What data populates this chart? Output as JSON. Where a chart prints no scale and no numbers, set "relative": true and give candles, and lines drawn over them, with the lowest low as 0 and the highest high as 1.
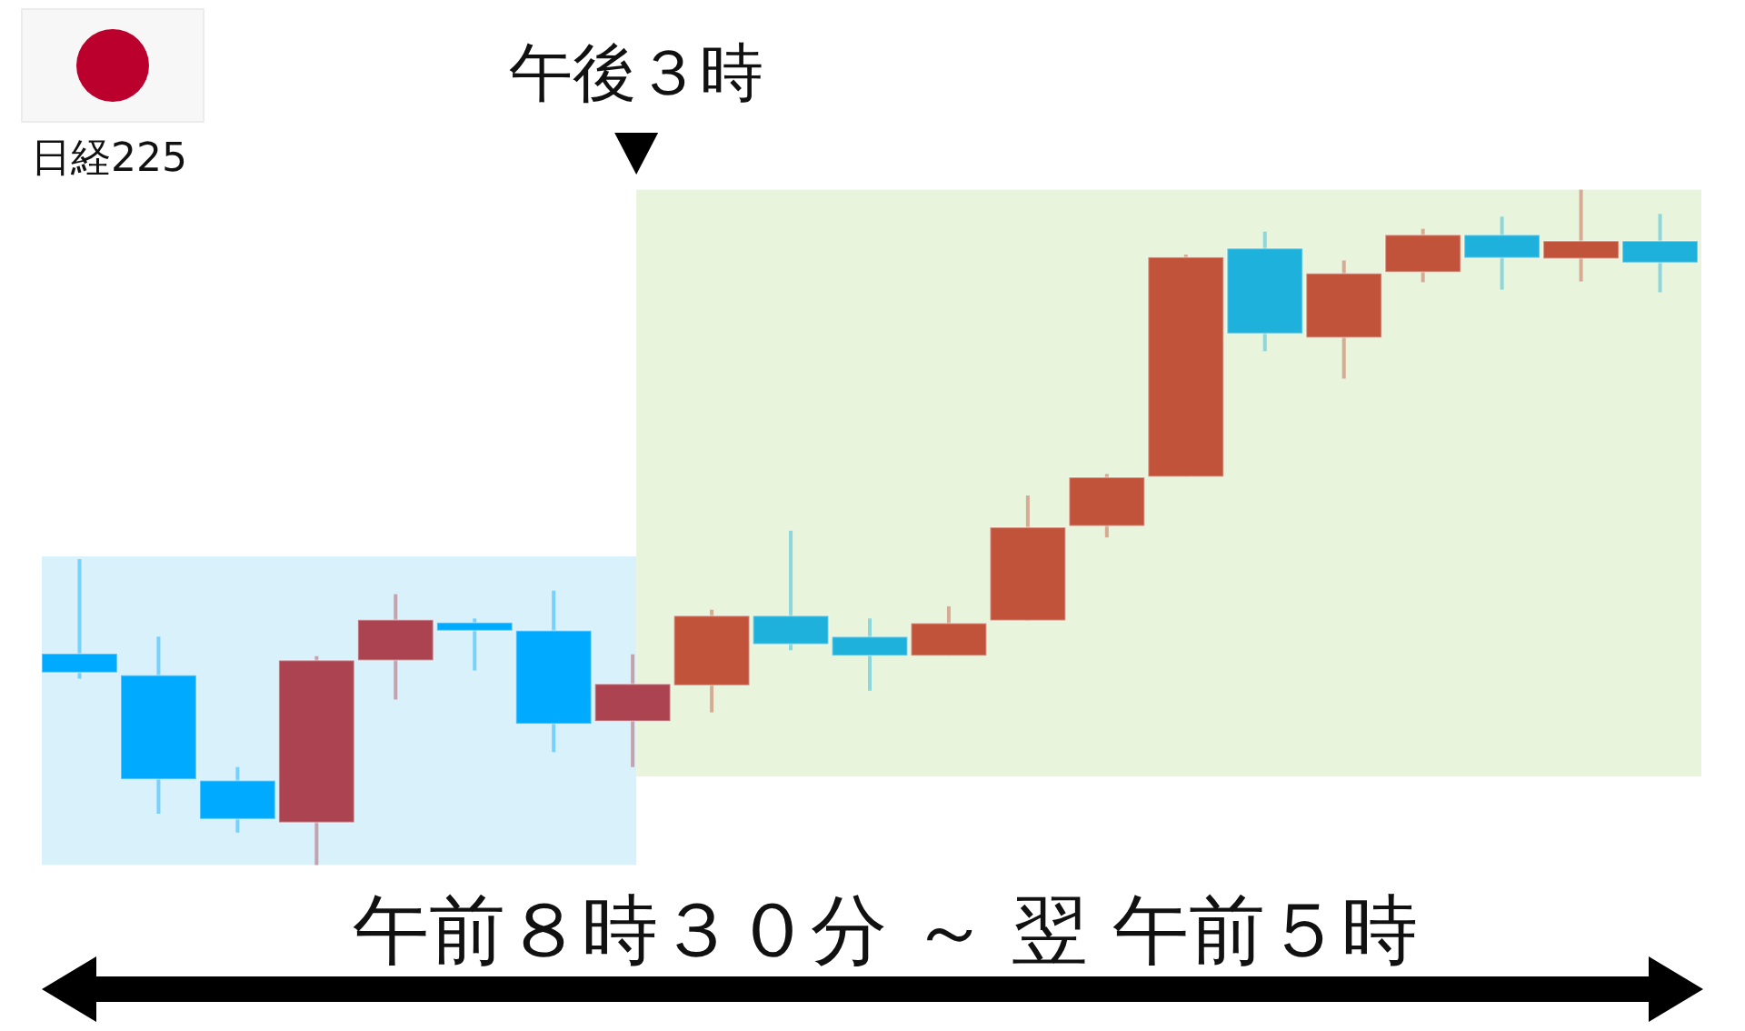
{
  "chart_data": {
    "type": "candlestick",
    "title": "日経225",
    "xlabel": "午前８時３０分 ～ 翌 午前５時",
    "annotations": [
      "午後３時"
    ],
    "relative": true,
    "categories": [
      null,
      null,
      null,
      null,
      null,
      null,
      null,
      null,
      null,
      null,
      null,
      null,
      null,
      null,
      null,
      null,
      null,
      null,
      null,
      null,
      null
    ],
    "ohlc": [
      [
        0.313,
        0.453,
        0.276,
        0.285
      ],
      [
        0.281,
        0.338,
        0.076,
        0.127
      ],
      [
        0.125,
        0.145,
        0.048,
        0.068
      ],
      [
        0.063,
        0.309,
        0,
        0.303
      ],
      [
        0.303,
        0.401,
        0.245,
        0.363
      ],
      [
        0.359,
        0.365,
        0.288,
        0.347
      ],
      [
        0.347,
        0.406,
        0.167,
        0.209
      ],
      [
        0.213,
        0.312,
        0.145,
        0.268
      ],
      [
        0.266,
        0.378,
        0.226,
        0.369
      ],
      [
        0.369,
        0.495,
        0.318,
        0.327
      ],
      [
        0.338,
        0.365,
        0.258,
        0.31
      ],
      [
        0.31,
        0.383,
        0.31,
        0.358
      ],
      [
        0.362,
        0.547,
        0.362,
        0.5
      ],
      [
        0.502,
        0.579,
        0.485,
        0.574
      ],
      [
        0.575,
        0.904,
        0.575,
        0.9
      ],
      [
        0.913,
        0.938,
        0.761,
        0.787
      ],
      [
        0.781,
        0.895,
        0.72,
        0.876
      ],
      [
        0.878,
        0.942,
        0.863,
        0.933
      ],
      [
        0.933,
        0.96,
        0.852,
        0.899
      ],
      [
        0.898,
        1,
        0.864,
        0.924
      ],
      [
        0.924,
        0.964,
        0.848,
        0.892
      ]
    ],
    "colors": [
      "#00aaff",
      "#00aaff",
      "#00aaff",
      "#ab4450",
      "#ab4450",
      "#00aaff",
      "#00aaff",
      "#ab4450",
      "#c1533a",
      "#1eb1dc",
      "#1eb1dc",
      "#c1533a",
      "#c1533a",
      "#c1533a",
      "#c1533a",
      "#1eb1dc",
      "#c1533a",
      "#c1533a",
      "#1eb1dc",
      "#c1533a",
      "#1eb1dc"
    ],
    "bands": [
      {
        "axis": "y",
        "from": 0,
        "to": 0.457,
        "color": "#d9f1fa"
      },
      {
        "axis": "y",
        "from": 0.131,
        "to": 1,
        "color": "#e8f4dc"
      }
    ]
  }
}
